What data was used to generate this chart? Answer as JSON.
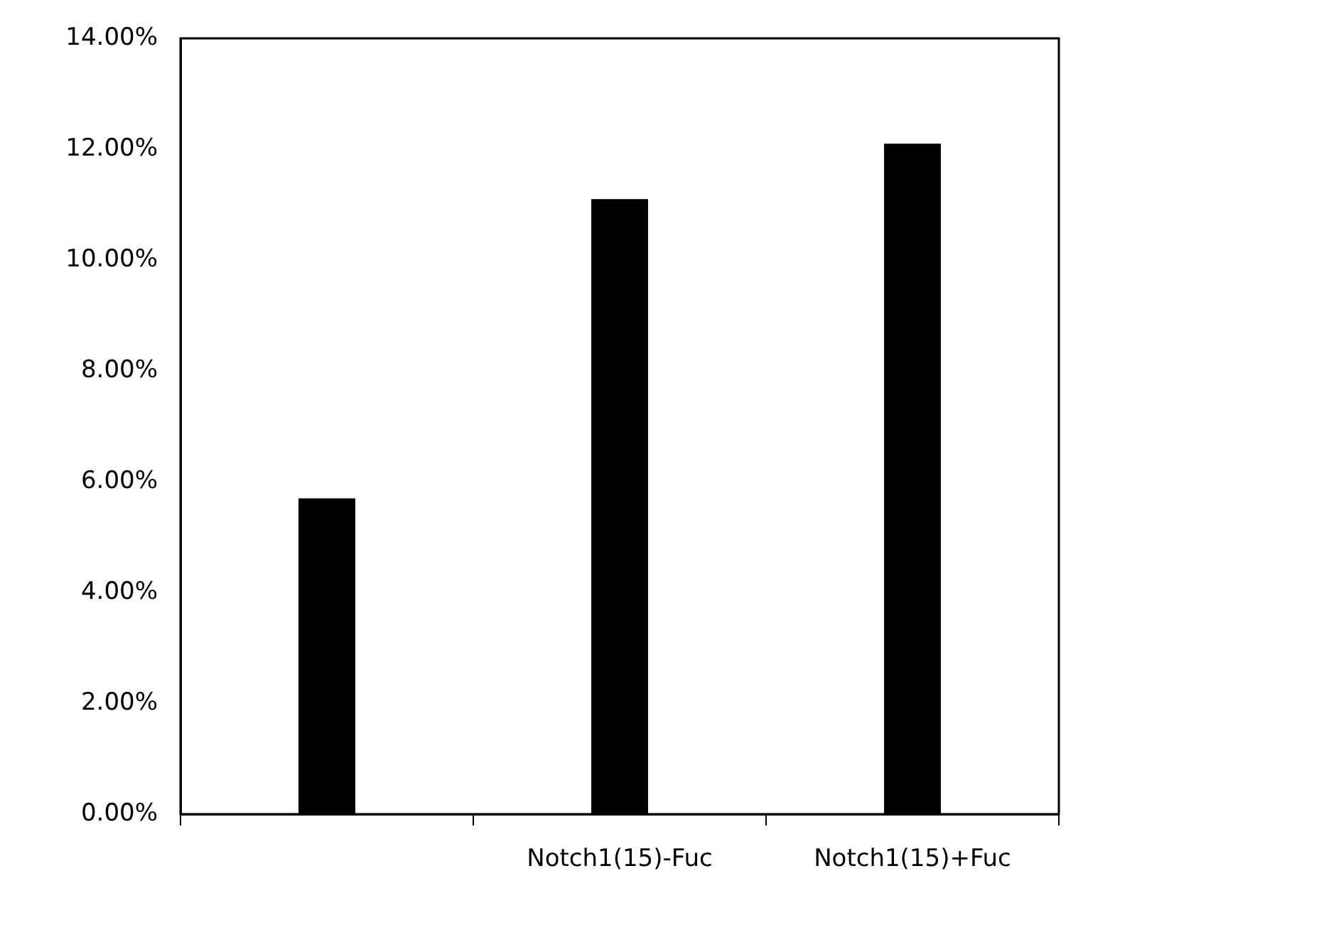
{
  "chart_data": {
    "type": "bar",
    "categories": [
      null,
      "Notch1(15)-Fuc",
      "Notch1(15)+Fuc"
    ],
    "values": [
      5.7,
      11.1,
      12.1
    ],
    "color": "#000000",
    "ylim": [
      0,
      14
    ],
    "yticks": [
      {
        "value": 0,
        "label": "0.00%"
      },
      {
        "value": 2,
        "label": "2.00%"
      },
      {
        "value": 4,
        "label": "4.00%"
      },
      {
        "value": 6,
        "label": "6.00%"
      },
      {
        "value": 8,
        "label": "8.00%"
      },
      {
        "value": 10,
        "label": "10.00%"
      },
      {
        "value": 12,
        "label": "12.00%"
      },
      {
        "value": 14,
        "label": "14.00%"
      }
    ],
    "grid": false,
    "legend": false
  }
}
